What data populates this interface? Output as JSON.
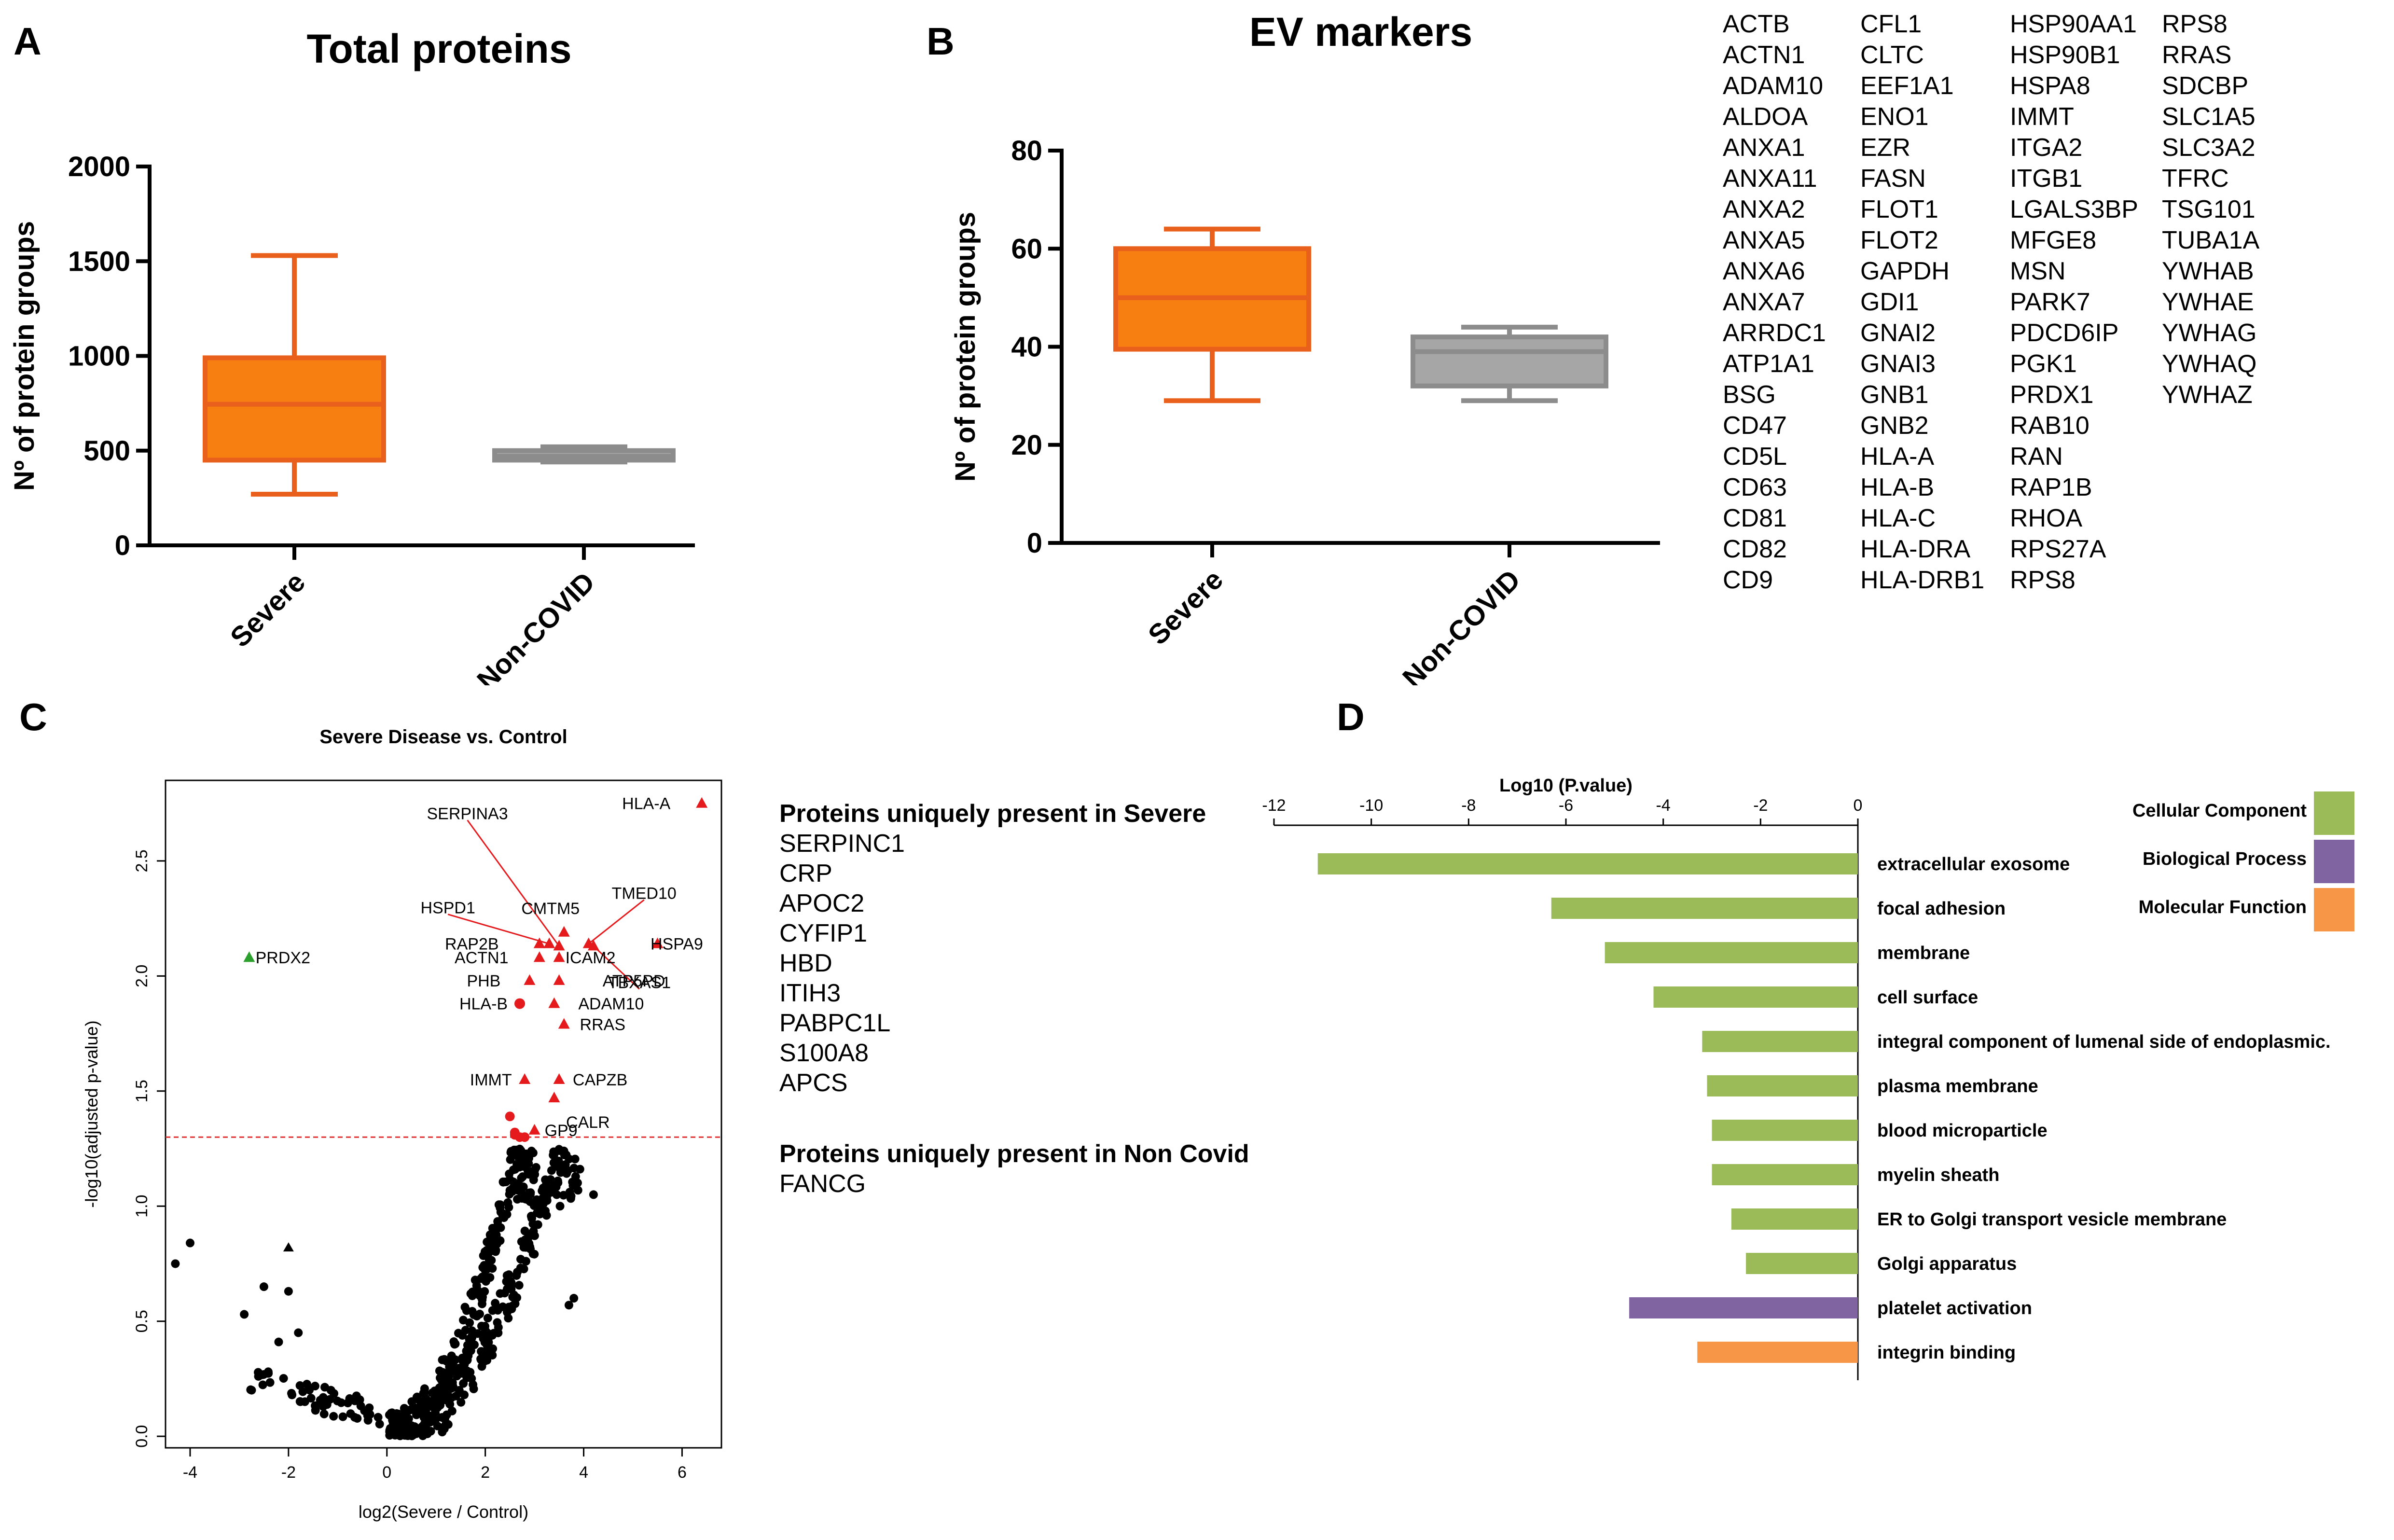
{
  "panels": {
    "A": "A",
    "B": "B",
    "C": "C",
    "D": "D"
  },
  "chart_data": [
    {
      "id": "A",
      "type": "boxplot",
      "title": "Total proteins",
      "ylabel": "Nº of protein groups",
      "ylim": [
        0,
        2000
      ],
      "yticks": [
        0,
        500,
        1000,
        1500,
        2000
      ],
      "categories": [
        "Severe",
        "Non-COVID"
      ],
      "boxes": [
        {
          "name": "Severe",
          "min": 270,
          "q1": 450,
          "median": 745,
          "q3": 990,
          "max": 1530,
          "color": "#f77f12",
          "edge": "#e8601c"
        },
        {
          "name": "Non-COVID",
          "min": 440,
          "q1": 450,
          "median": 470,
          "q3": 500,
          "max": 520,
          "color": "#a6a6a6",
          "edge": "#8c8c8c"
        }
      ]
    },
    {
      "id": "B",
      "type": "boxplot",
      "title": "EV markers",
      "ylabel": "Nº of protein groups",
      "ylim": [
        0,
        80
      ],
      "yticks": [
        0,
        20,
        40,
        60,
        80
      ],
      "categories": [
        "Severe",
        "Non-COVID"
      ],
      "boxes": [
        {
          "name": "Severe",
          "min": 29,
          "q1": 39.5,
          "median": 50,
          "q3": 60,
          "max": 64,
          "color": "#f77f12",
          "edge": "#e8601c"
        },
        {
          "name": "Non-COVID",
          "min": 29,
          "q1": 32,
          "median": 39,
          "q3": 42,
          "max": 44,
          "color": "#a6a6a6",
          "edge": "#8c8c8c"
        }
      ]
    },
    {
      "id": "C",
      "type": "scatter",
      "title": "Severe Disease vs. Control",
      "xlabel": "log2(Severe / Control)",
      "ylabel": "-log10(adjusted p-value)",
      "xlim": [
        -4.5,
        6.8
      ],
      "ylim": [
        -0.05,
        2.85
      ],
      "xticks": [
        -4,
        -2,
        0,
        2,
        4,
        6
      ],
      "yticks": [
        0.0,
        0.5,
        1.0,
        1.5,
        2.0,
        2.5
      ],
      "threshold": 1.3,
      "labeled_points": [
        {
          "label": "HLA-A",
          "x": 6.4,
          "y": 2.75,
          "shape": "triangle",
          "color": "red"
        },
        {
          "label": "PRDX2",
          "x": -2.8,
          "y": 2.08,
          "shape": "triangle",
          "color": "green"
        },
        {
          "label": "SERPINA3",
          "x": 3.5,
          "y": 2.13,
          "shape": "triangle",
          "color": "red"
        },
        {
          "label": "HSPD1",
          "x": 3.3,
          "y": 2.14,
          "shape": "triangle",
          "color": "red"
        },
        {
          "label": "CMTM5",
          "x": 3.6,
          "y": 2.19,
          "shape": "triangle",
          "color": "red"
        },
        {
          "label": "TMED10",
          "x": 4.1,
          "y": 2.14,
          "shape": "triangle",
          "color": "red"
        },
        {
          "label": "HSPA9",
          "x": 5.5,
          "y": 2.14,
          "shape": "triangle",
          "color": "red"
        },
        {
          "label": "TBXAS1",
          "x": 4.2,
          "y": 2.13,
          "shape": "triangle",
          "color": "red"
        },
        {
          "label": "RAP2B",
          "x": 3.1,
          "y": 2.14,
          "shape": "triangle",
          "color": "red"
        },
        {
          "label": "ACTN1",
          "x": 3.1,
          "y": 2.08,
          "shape": "triangle",
          "color": "red"
        },
        {
          "label": "ICAM2",
          "x": 3.5,
          "y": 2.08,
          "shape": "triangle",
          "color": "red"
        },
        {
          "label": "PHB",
          "x": 2.9,
          "y": 1.98,
          "shape": "triangle",
          "color": "red"
        },
        {
          "label": "ATP5PD",
          "x": 3.5,
          "y": 1.98,
          "shape": "triangle",
          "color": "red"
        },
        {
          "label": "HLA-B",
          "x": 2.7,
          "y": 1.88,
          "shape": "circle",
          "color": "red"
        },
        {
          "label": "ADAM10",
          "x": 3.4,
          "y": 1.88,
          "shape": "triangle",
          "color": "red"
        },
        {
          "label": "RRAS",
          "x": 3.6,
          "y": 1.79,
          "shape": "triangle",
          "color": "red"
        },
        {
          "label": "IMMT",
          "x": 2.8,
          "y": 1.55,
          "shape": "triangle",
          "color": "red"
        },
        {
          "label": "CAPZB",
          "x": 3.5,
          "y": 1.55,
          "shape": "triangle",
          "color": "red"
        },
        {
          "label": "CALR",
          "x": 3.4,
          "y": 1.47,
          "shape": "triangle",
          "color": "red"
        },
        {
          "label": "GP9",
          "x": 3.0,
          "y": 1.33,
          "shape": "triangle",
          "color": "red"
        }
      ]
    },
    {
      "id": "D",
      "type": "bar",
      "orientation": "horizontal",
      "title": "Log10 (P.value)",
      "xlim": [
        -12,
        0
      ],
      "xticks": [
        -12,
        -10,
        -8,
        -6,
        -4,
        -2,
        0
      ],
      "categories": [
        "extracellular exosome",
        "focal adhesion",
        "membrane",
        "cell surface",
        "integral component of lumenal side of endoplasmic.",
        "plasma membrane",
        "blood microparticle",
        "myelin sheath",
        "ER to Golgi transport vesicle membrane",
        "Golgi apparatus",
        "platelet activation",
        "integrin binding"
      ],
      "values": [
        -11.1,
        -6.3,
        -5.2,
        -4.2,
        -3.2,
        -3.1,
        -3.0,
        -3.0,
        -2.6,
        -2.3,
        -4.7,
        -3.3
      ],
      "groups": [
        "Cellular Component",
        "Cellular Component",
        "Cellular Component",
        "Cellular Component",
        "Cellular Component",
        "Cellular Component",
        "Cellular Component",
        "Cellular Component",
        "Cellular Component",
        "Cellular Component",
        "Biological Process",
        "Molecular Function"
      ],
      "legend": [
        {
          "name": "Cellular Component",
          "color": "#9bbb59"
        },
        {
          "name": "Biological Process",
          "color": "#8064a2"
        },
        {
          "name": "Molecular Function",
          "color": "#f79646"
        }
      ]
    }
  ],
  "ev_marker_list": [
    [
      "ACTB",
      "ACTN1",
      "ADAM10",
      "ALDOA",
      "ANXA1",
      "ANXA11",
      "ANXA2",
      "ANXA5",
      "ANXA6",
      "ANXA7",
      "ARRDC1",
      "ATP1A1",
      "BSG",
      "CD47",
      "CD5L",
      "CD63",
      "CD81",
      "CD82",
      "CD9"
    ],
    [
      "CFL1",
      "CLTC",
      "EEF1A1",
      "ENO1",
      "EZR",
      "FASN",
      "FLOT1",
      "FLOT2",
      "GAPDH",
      "GDI1",
      "GNAI2",
      "GNAI3",
      "GNB1",
      "GNB2",
      "HLA-A",
      "HLA-B",
      "HLA-C",
      "HLA-DRA",
      "HLA-DRB1"
    ],
    [
      "HSP90AA1",
      "HSP90B1",
      "HSPA8",
      "IMMT",
      "ITGA2",
      "ITGB1",
      "LGALS3BP",
      "MFGE8",
      "MSN",
      "PARK7",
      "PDCD6IP",
      "PGK1",
      "PRDX1",
      "RAB10",
      "RAN",
      "RAP1B",
      "RHOA",
      "RPS27A",
      "RPS8"
    ],
    [
      "RPS8",
      "RRAS",
      "SDCBP",
      "SLC1A5",
      "SLC3A2",
      "TFRC",
      "TSG101",
      "TUBA1A",
      "YWHAB",
      "YWHAE",
      "YWHAG",
      "YWHAQ",
      "YWHAZ"
    ]
  ],
  "unique": {
    "severe_header": "Proteins uniquely present in Severe",
    "severe": [
      "SERPINC1",
      "CRP",
      "APOC2",
      "CYFIP1",
      "HBD",
      "ITIH3",
      "PABPC1L",
      "S100A8",
      "APCS"
    ],
    "noncovid_header": "Proteins uniquely present in Non Covid",
    "noncovid": [
      "FANCG"
    ]
  }
}
